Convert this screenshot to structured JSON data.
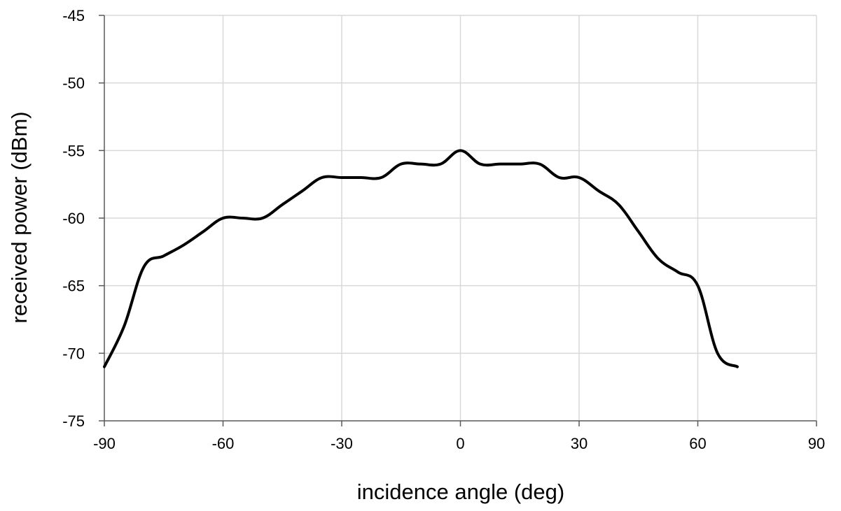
{
  "chart_data": {
    "type": "line",
    "title": "",
    "xlabel": "incidence angle (deg)",
    "ylabel": "received power (dBm)",
    "xlim": [
      -90,
      90
    ],
    "ylim": [
      -75,
      -45
    ],
    "xticks": [
      -90,
      -60,
      -30,
      0,
      30,
      60,
      90
    ],
    "yticks": [
      -45,
      -50,
      -55,
      -60,
      -65,
      -70,
      -75
    ],
    "xtick_labels": [
      "-90",
      "-60",
      "-30",
      "0",
      "30",
      "60",
      "90"
    ],
    "ytick_labels": [
      "-45",
      "-50",
      "-55",
      "-60",
      "-65",
      "-70",
      "-75"
    ],
    "grid": true,
    "legend": "none",
    "series": [
      {
        "color": "#000000",
        "x": [
          -90,
          -85,
          -80,
          -75,
          -70,
          -65,
          -60,
          -55,
          -50,
          -45,
          -40,
          -35,
          -30,
          -25,
          -20,
          -15,
          -10,
          -5,
          0,
          5,
          10,
          15,
          20,
          25,
          30,
          35,
          40,
          45,
          50,
          55,
          60,
          65,
          70
        ],
        "y": [
          -71,
          -68,
          -63.6,
          -62.8,
          -62,
          -61,
          -60,
          -60,
          -60,
          -59,
          -58,
          -57,
          -57,
          -57,
          -57,
          -56,
          -56,
          -56,
          -55,
          -56,
          -56,
          -56,
          -56,
          -57,
          -57,
          -58,
          -59,
          -61,
          -63,
          -64,
          -65,
          -70,
          -71
        ]
      }
    ]
  }
}
